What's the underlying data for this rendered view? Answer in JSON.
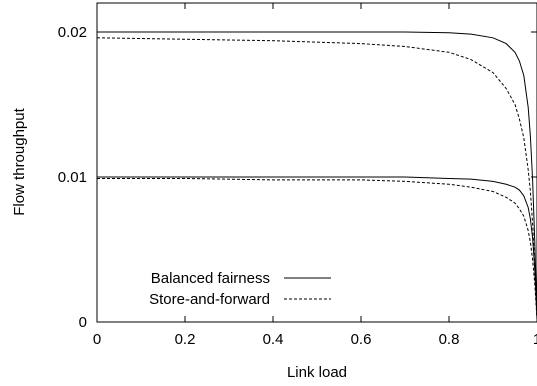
{
  "chart_data": {
    "type": "line",
    "title": "",
    "xlabel": "Link load",
    "ylabel": "Flow throughput",
    "xlim": [
      0,
      1
    ],
    "ylim": [
      0,
      0.022
    ],
    "grid": false,
    "legend_position": "bottom-left",
    "x_ticks": [
      {
        "value": 0,
        "label": "0"
      },
      {
        "value": 0.2,
        "label": "0.2"
      },
      {
        "value": 0.4,
        "label": "0.4"
      },
      {
        "value": 0.6,
        "label": "0.6"
      },
      {
        "value": 0.8,
        "label": "0.8"
      },
      {
        "value": 1,
        "label": "1"
      }
    ],
    "y_ticks": [
      {
        "value": 0,
        "label": "0"
      },
      {
        "value": 0.01,
        "label": "0.01"
      },
      {
        "value": 0.02,
        "label": "0.02"
      }
    ],
    "legend": [
      {
        "label": "Balanced fairness",
        "dash": "solid"
      },
      {
        "label": "Store-and-forward",
        "dash": "dashed"
      }
    ],
    "series": [
      {
        "legend_index": 0,
        "dash": "solid",
        "x": [
          0,
          0.2,
          0.4,
          0.6,
          0.7,
          0.8,
          0.85,
          0.9,
          0.93,
          0.95,
          0.96,
          0.97,
          0.98,
          0.985,
          0.99,
          0.995,
          1.0
        ],
        "y": [
          0.02,
          0.02,
          0.02,
          0.02,
          0.02,
          0.01995,
          0.01985,
          0.0196,
          0.0192,
          0.0186,
          0.018,
          0.017,
          0.0148,
          0.0128,
          0.0098,
          0.0055,
          0.0003
        ]
      },
      {
        "legend_index": 1,
        "dash": "dashed",
        "x": [
          0,
          0.2,
          0.4,
          0.6,
          0.7,
          0.8,
          0.85,
          0.9,
          0.93,
          0.95,
          0.96,
          0.97,
          0.98,
          0.985,
          0.99,
          0.995,
          1.0
        ],
        "y": [
          0.0196,
          0.0195,
          0.0194,
          0.0192,
          0.019,
          0.0186,
          0.0181,
          0.0172,
          0.0161,
          0.015,
          0.014,
          0.0127,
          0.0105,
          0.009,
          0.0068,
          0.0038,
          0.0003
        ]
      },
      {
        "legend_index": 0,
        "dash": "solid",
        "x": [
          0,
          0.2,
          0.4,
          0.6,
          0.7,
          0.8,
          0.85,
          0.9,
          0.93,
          0.95,
          0.96,
          0.97,
          0.98,
          0.985,
          0.99,
          0.995,
          1.0
        ],
        "y": [
          0.01,
          0.01,
          0.01,
          0.01,
          0.01,
          0.0099,
          0.00985,
          0.0097,
          0.0095,
          0.0093,
          0.0091,
          0.0087,
          0.0079,
          0.0071,
          0.0058,
          0.0036,
          0.0002
        ]
      },
      {
        "legend_index": 1,
        "dash": "dashed",
        "x": [
          0,
          0.2,
          0.4,
          0.6,
          0.7,
          0.8,
          0.85,
          0.9,
          0.93,
          0.95,
          0.96,
          0.97,
          0.98,
          0.985,
          0.99,
          0.995,
          1.0
        ],
        "y": [
          0.0099,
          0.0099,
          0.0098,
          0.0098,
          0.0097,
          0.0095,
          0.0093,
          0.009,
          0.0086,
          0.0082,
          0.0078,
          0.0073,
          0.0063,
          0.0055,
          0.0043,
          0.0026,
          0.0002
        ]
      }
    ]
  }
}
